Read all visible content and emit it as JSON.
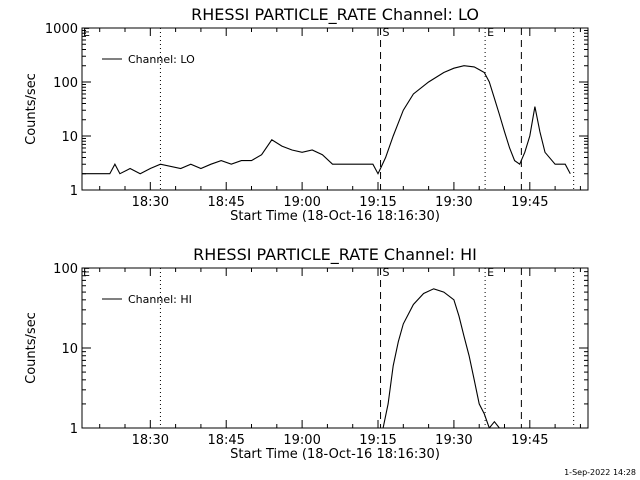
{
  "chart_data": [
    {
      "type": "line",
      "title": "RHESSI PARTICLE_RATE Channel: LO",
      "xlabel": "Start Time (18-Oct-16 18:16:30)",
      "ylabel": "Counts/sec",
      "yscale": "log",
      "ylim": [
        1,
        1000
      ],
      "y_ticks": [
        "1",
        "10",
        "100",
        "1000"
      ],
      "xlim": [
        "18:16:30",
        "19:56:30"
      ],
      "x_ticks": [
        "18:30",
        "18:45",
        "19:00",
        "19:15",
        "19:30",
        "19:45"
      ],
      "grid": false,
      "legend": {
        "position": "top-left",
        "entries": [
          "Channel: LO"
        ]
      },
      "markers": [
        {
          "time": "18:32:00",
          "style": "dotted",
          "label": ""
        },
        {
          "time": "19:15:30",
          "style": "dashed",
          "label": "S"
        },
        {
          "time": "19:36:10",
          "style": "dotted",
          "label": "E"
        },
        {
          "time": "19:43:20",
          "style": "dashed",
          "label": ""
        },
        {
          "time": "19:53:40",
          "style": "dotted",
          "label": ""
        }
      ],
      "corner_marker": "E",
      "series": [
        {
          "name": "Channel: LO",
          "points": [
            [
              "18:16:30",
              2.0
            ],
            [
              "18:20:00",
              2.0
            ],
            [
              "18:22:00",
              2.0
            ],
            [
              "18:23:00",
              3.0
            ],
            [
              "18:24:00",
              2.0
            ],
            [
              "18:26:00",
              2.5
            ],
            [
              "18:28:00",
              2.0
            ],
            [
              "18:30:00",
              2.5
            ],
            [
              "18:32:00",
              3.0
            ],
            [
              "18:36:00",
              2.5
            ],
            [
              "18:38:00",
              3.0
            ],
            [
              "18:40:00",
              2.5
            ],
            [
              "18:42:00",
              3.0
            ],
            [
              "18:44:00",
              3.5
            ],
            [
              "18:46:00",
              3.0
            ],
            [
              "18:48:00",
              3.5
            ],
            [
              "18:50:00",
              3.5
            ],
            [
              "18:52:00",
              4.5
            ],
            [
              "18:54:00",
              8.5
            ],
            [
              "18:56:00",
              6.5
            ],
            [
              "18:58:00",
              5.5
            ],
            [
              "19:00:00",
              5.0
            ],
            [
              "19:02:00",
              5.5
            ],
            [
              "19:04:00",
              4.5
            ],
            [
              "19:06:00",
              3.0
            ],
            [
              "19:10:00",
              3.0
            ],
            [
              "19:14:00",
              3.0
            ],
            [
              "19:15:00",
              2.0
            ],
            [
              "19:15:30",
              2.5
            ],
            [
              "19:16:30",
              4.0
            ],
            [
              "19:18:00",
              10.0
            ],
            [
              "19:20:00",
              30.0
            ],
            [
              "19:22:00",
              60.0
            ],
            [
              "19:25:00",
              100.0
            ],
            [
              "19:28:00",
              150.0
            ],
            [
              "19:30:00",
              180.0
            ],
            [
              "19:32:00",
              200.0
            ],
            [
              "19:34:00",
              190.0
            ],
            [
              "19:35:00",
              170.0
            ],
            [
              "19:36:00",
              150.0
            ],
            [
              "19:37:00",
              100.0
            ],
            [
              "19:38:00",
              50.0
            ],
            [
              "19:39:00",
              25.0
            ],
            [
              "19:40:00",
              12.0
            ],
            [
              "19:41:00",
              6.0
            ],
            [
              "19:42:00",
              3.5
            ],
            [
              "19:43:00",
              3.0
            ],
            [
              "19:44:00",
              5.0
            ],
            [
              "19:45:00",
              10.0
            ],
            [
              "19:46:00",
              35.0
            ],
            [
              "19:47:00",
              12.0
            ],
            [
              "19:48:00",
              5.0
            ],
            [
              "19:50:00",
              3.0
            ],
            [
              "19:52:00",
              3.0
            ],
            [
              "19:53:00",
              2.0
            ]
          ]
        }
      ]
    },
    {
      "type": "line",
      "title": "RHESSI PARTICLE_RATE Channel: HI",
      "xlabel": "Start Time (18-Oct-16 18:16:30)",
      "ylabel": "Counts/sec",
      "yscale": "log",
      "ylim": [
        1,
        100
      ],
      "y_ticks": [
        "1",
        "10",
        "100"
      ],
      "xlim": [
        "18:16:30",
        "19:56:30"
      ],
      "x_ticks": [
        "18:30",
        "18:45",
        "19:00",
        "19:15",
        "19:30",
        "19:45"
      ],
      "grid": false,
      "legend": {
        "position": "top-left",
        "entries": [
          "Channel: HI"
        ]
      },
      "markers": [
        {
          "time": "18:32:00",
          "style": "dotted",
          "label": ""
        },
        {
          "time": "19:15:30",
          "style": "dashed",
          "label": "S"
        },
        {
          "time": "19:36:10",
          "style": "dotted",
          "label": "E"
        },
        {
          "time": "19:43:20",
          "style": "dashed",
          "label": ""
        },
        {
          "time": "19:53:40",
          "style": "dotted",
          "label": ""
        }
      ],
      "corner_marker": "E",
      "series": [
        {
          "name": "Channel: HI",
          "points": [
            [
              "19:16:00",
              1.0
            ],
            [
              "19:17:00",
              2.0
            ],
            [
              "19:18:00",
              6.0
            ],
            [
              "19:19:00",
              12.0
            ],
            [
              "19:20:00",
              20.0
            ],
            [
              "19:22:00",
              35.0
            ],
            [
              "19:24:00",
              48.0
            ],
            [
              "19:26:00",
              55.0
            ],
            [
              "19:28:00",
              50.0
            ],
            [
              "19:30:00",
              40.0
            ],
            [
              "19:31:00",
              25.0
            ],
            [
              "19:32:00",
              14.0
            ],
            [
              "19:33:00",
              8.0
            ],
            [
              "19:34:00",
              4.0
            ],
            [
              "19:35:00",
              2.0
            ],
            [
              "19:36:00",
              1.5
            ],
            [
              "19:37:00",
              1.0
            ],
            [
              "19:38:00",
              1.2
            ],
            [
              "19:39:00",
              1.0
            ]
          ]
        }
      ]
    }
  ],
  "footer": {
    "timestamp": "1-Sep-2022 14:28"
  }
}
